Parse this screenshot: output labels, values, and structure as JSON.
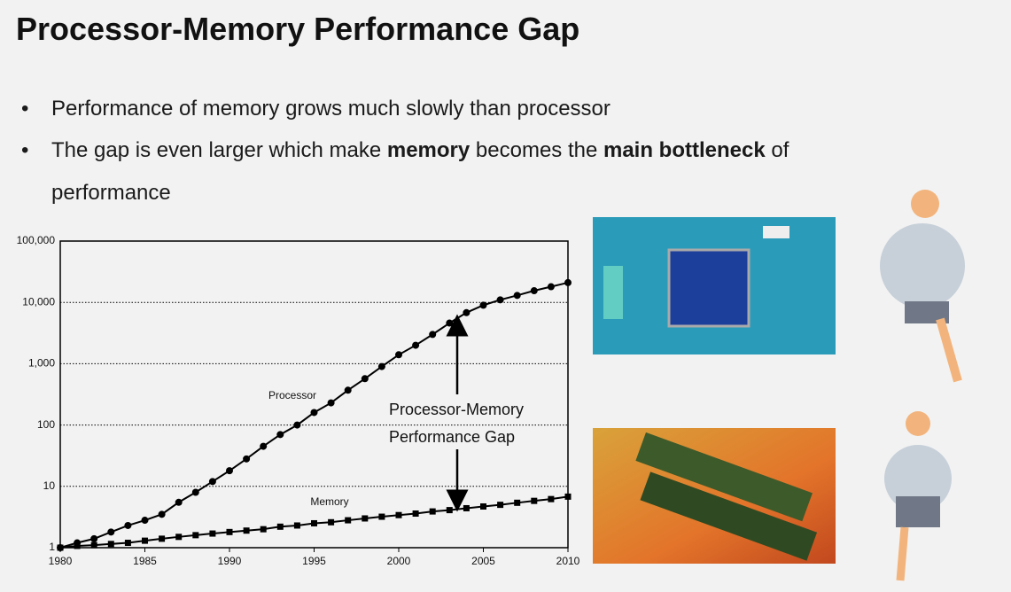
{
  "title": "Processor-Memory Performance Gap",
  "bullets": [
    [
      "Performance of memory grows much slowly than processor"
    ],
    [
      "The gap is even larger which make ",
      "memory",
      " becomes the ",
      "main bottleneck",
      " of performance"
    ]
  ],
  "chart_data": {
    "type": "line",
    "x": [
      1980,
      1981,
      1982,
      1983,
      1984,
      1985,
      1986,
      1987,
      1988,
      1989,
      1990,
      1991,
      1992,
      1993,
      1994,
      1995,
      1996,
      1997,
      1998,
      1999,
      2000,
      2001,
      2002,
      2003,
      2004,
      2005,
      2006,
      2007,
      2008,
      2009,
      2010
    ],
    "series": [
      {
        "name": "Processor",
        "color": "#000000",
        "marker": "circle",
        "values": [
          1,
          1.2,
          1.4,
          1.8,
          2.3,
          2.8,
          3.5,
          5.5,
          8,
          12,
          18,
          28,
          45,
          70,
          100,
          160,
          230,
          370,
          570,
          900,
          1400,
          2000,
          3000,
          4600,
          6800,
          9000,
          11000,
          13000,
          15500,
          18000,
          21000
        ]
      },
      {
        "name": "Memory",
        "color": "#000000",
        "marker": "square",
        "values": [
          1,
          1.07,
          1.1,
          1.15,
          1.2,
          1.3,
          1.4,
          1.5,
          1.6,
          1.7,
          1.8,
          1.9,
          2.0,
          2.2,
          2.3,
          2.5,
          2.6,
          2.8,
          3.0,
          3.2,
          3.4,
          3.6,
          3.9,
          4.1,
          4.4,
          4.7,
          5.0,
          5.4,
          5.8,
          6.2,
          6.8
        ]
      }
    ],
    "annotation": [
      "Processor-Memory",
      "Performance Gap"
    ],
    "xlim": [
      1980,
      2010
    ],
    "xticks": [
      1980,
      1985,
      1990,
      1995,
      2000,
      2005,
      2010
    ],
    "ylim": [
      1,
      100000
    ],
    "yscale": "log",
    "yticks": [
      1,
      10,
      100,
      {
        "value": 1000,
        "label": "1,000"
      },
      {
        "value": 10000,
        "label": "10,000"
      },
      {
        "value": 100000,
        "label": "100,000"
      }
    ],
    "grid": true
  }
}
